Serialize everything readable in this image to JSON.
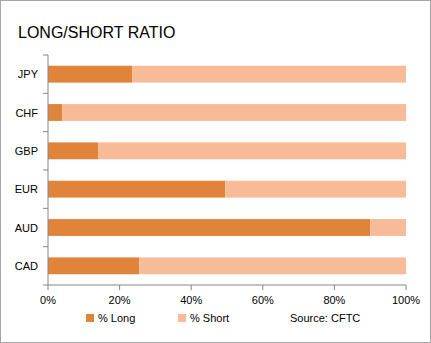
{
  "chart_data": {
    "type": "bar",
    "title": "LONG/SHORT RATIO",
    "orientation": "horizontal",
    "stacked": true,
    "categories": [
      "JPY",
      "CHF",
      "GBP",
      "EUR",
      "AUD",
      "CAD"
    ],
    "series": [
      {
        "name": "% Long",
        "color": "#e0843c",
        "values": [
          23.5,
          4,
          14,
          49.5,
          90,
          25.5
        ]
      },
      {
        "name": "% Short",
        "color": "#f8bb98",
        "values": [
          76.5,
          96,
          86,
          50.5,
          10,
          74.5
        ]
      }
    ],
    "xlim": [
      0,
      100
    ],
    "xticks": [
      {
        "value": 0,
        "label": "0%"
      },
      {
        "value": 20,
        "label": "20%"
      },
      {
        "value": 40,
        "label": "40%"
      },
      {
        "value": 60,
        "label": "60%"
      },
      {
        "value": 80,
        "label": "80%"
      },
      {
        "value": 100,
        "label": "100%"
      }
    ],
    "grid": false,
    "legend": "bottom",
    "annotations": [
      "Source: CFTC"
    ]
  }
}
